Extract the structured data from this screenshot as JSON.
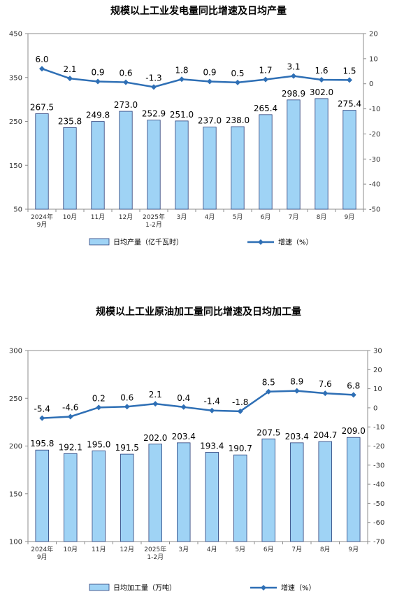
{
  "chart_data": [
    {
      "type": "bar",
      "title": "规模以上工业发电量同比增速及日均产量",
      "categories": [
        [
          "2024年",
          "9月"
        ],
        [
          "10月"
        ],
        [
          "11月"
        ],
        [
          "12月"
        ],
        [
          "2025年",
          "1-2月"
        ],
        [
          "3月"
        ],
        [
          "4月"
        ],
        [
          "5月"
        ],
        [
          "6月"
        ],
        [
          "7月"
        ],
        [
          "8月"
        ],
        [
          "9月"
        ]
      ],
      "ylim": [
        50,
        450
      ],
      "yticks": [
        50,
        150,
        250,
        350,
        450
      ],
      "y2lim": [
        -50,
        20
      ],
      "y2ticks": [
        -50,
        -40,
        -30,
        -20,
        -10,
        0,
        10,
        20
      ],
      "grid": false,
      "legend_position": "bottom",
      "series": [
        {
          "name": "日均产量（亿千瓦时）",
          "type": "bar",
          "axis": "left",
          "values": [
            267.5,
            235.8,
            249.8,
            273.0,
            252.9,
            251.0,
            237.0,
            238.0,
            265.4,
            298.9,
            302.0,
            275.4
          ],
          "labels": [
            "267.5",
            "235.8",
            "249.8",
            "273.0",
            "252.9",
            "251.0",
            "237.0",
            "238.0",
            "265.4",
            "298.9",
            "302.0",
            "275.4"
          ]
        },
        {
          "name": "增速（%）",
          "type": "line",
          "axis": "right",
          "values": [
            6.0,
            2.1,
            0.9,
            0.6,
            -1.3,
            1.8,
            0.9,
            0.5,
            1.7,
            3.1,
            1.6,
            1.5
          ],
          "labels": [
            "6.0",
            "2.1",
            "0.9",
            "0.6",
            "-1.3",
            "1.8",
            "0.9",
            "0.5",
            "1.7",
            "3.1",
            "1.6",
            "1.5"
          ]
        }
      ],
      "colors": {
        "bar_fill": "#9fd3f5",
        "bar_stroke": "#2b3f7a",
        "line": "#2e6fb5"
      }
    },
    {
      "type": "bar",
      "title": "规模以上工业原油加工量同比增速及日均加工量",
      "categories": [
        [
          "2024年",
          "9月"
        ],
        [
          "10月"
        ],
        [
          "11月"
        ],
        [
          "12月"
        ],
        [
          "2025年",
          "1-2月"
        ],
        [
          "3月"
        ],
        [
          "4月"
        ],
        [
          "5月"
        ],
        [
          "6月"
        ],
        [
          "7月"
        ],
        [
          "8月"
        ],
        [
          "9月"
        ]
      ],
      "ylim": [
        100,
        300
      ],
      "yticks": [
        100,
        150,
        200,
        250,
        300
      ],
      "y2lim": [
        -70,
        30
      ],
      "y2ticks": [
        -70,
        -60,
        -50,
        -40,
        -30,
        -20,
        -10,
        0,
        10,
        20,
        30
      ],
      "grid": false,
      "legend_position": "bottom",
      "series": [
        {
          "name": "日均加工量（万吨）",
          "type": "bar",
          "axis": "left",
          "values": [
            195.8,
            192.1,
            195.0,
            191.5,
            202.0,
            203.4,
            193.4,
            190.7,
            207.5,
            203.4,
            204.7,
            209.0
          ],
          "labels": [
            "195.8",
            "192.1",
            "195.0",
            "191.5",
            "202.0",
            "203.4",
            "193.4",
            "190.7",
            "207.5",
            "203.4",
            "204.7",
            "209.0"
          ]
        },
        {
          "name": "增速（%）",
          "type": "line",
          "axis": "right",
          "values": [
            -5.4,
            -4.6,
            0.2,
            0.6,
            2.1,
            0.4,
            -1.4,
            -1.8,
            8.5,
            8.9,
            7.6,
            6.8
          ],
          "labels": [
            "-5.4",
            "-4.6",
            "0.2",
            "0.6",
            "2.1",
            "0.4",
            "-1.4",
            "-1.8",
            "8.5",
            "8.9",
            "7.6",
            "6.8"
          ]
        }
      ],
      "colors": {
        "bar_fill": "#9fd3f5",
        "bar_stroke": "#2b3f7a",
        "line": "#2e6fb5"
      }
    }
  ]
}
